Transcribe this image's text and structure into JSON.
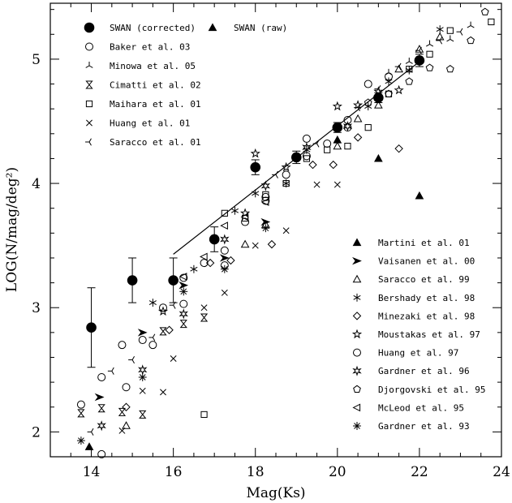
{
  "chart_data": {
    "type": "scatter",
    "xlabel": "Mag(Ks)",
    "ylabel": "LOG(N/mag/deg²)",
    "xlim": [
      13,
      24
    ],
    "ylim": [
      1.8,
      5.45
    ],
    "xticks": [
      14,
      16,
      18,
      20,
      22,
      24
    ],
    "yticks": [
      2,
      3,
      4,
      5
    ],
    "grid": false,
    "fit_line": {
      "x": [
        16,
        22
      ],
      "y": [
        3.43,
        4.98
      ]
    },
    "series": [
      {
        "name": "SWAN (corrected)",
        "marker": "filled-circle",
        "legend_group": "top-left",
        "x": [
          14,
          15,
          16,
          17,
          18,
          19,
          20,
          21,
          22
        ],
        "y": [
          2.84,
          3.22,
          3.22,
          3.55,
          4.13,
          4.21,
          4.45,
          4.69,
          4.99
        ],
        "err": [
          0.32,
          0.18,
          0.18,
          0.1,
          0.06,
          0.05,
          0.04,
          0.04,
          0.05
        ]
      },
      {
        "name": "SWAN (raw)",
        "marker": "filled-triangle",
        "legend_group": "top-right",
        "x": [
          20,
          21,
          22
        ],
        "y": [
          4.35,
          4.2,
          3.9
        ]
      },
      {
        "name": "Baker et al. 03",
        "marker": "open-circle",
        "legend_group": "top-left",
        "x": [
          13.75,
          14.25,
          14.75,
          15.25,
          15.75,
          16.25,
          16.75,
          17.25,
          17.75,
          18.25,
          18.75,
          19.25,
          19.75,
          20.25,
          20.75,
          21.25
        ],
        "y": [
          2.22,
          2.44,
          2.7,
          2.74,
          3.0,
          3.24,
          3.36,
          3.46,
          3.69,
          3.89,
          4.07,
          4.22,
          4.32,
          4.45,
          4.8,
          4.86
        ]
      },
      {
        "name": "Minowa et al. 05",
        "marker": "tri-up",
        "legend_group": "top-left",
        "x": [
          21.25,
          21.75,
          22.25,
          22.75,
          23.25
        ],
        "y": [
          4.89,
          4.98,
          5.12,
          5.16,
          5.27
        ]
      },
      {
        "name": "Cimatti et al. 02",
        "marker": "hourglass",
        "legend_group": "top-left",
        "x": [
          13.75,
          14.25,
          14.75,
          15.25,
          15.75,
          16.25,
          16.75
        ],
        "y": [
          2.15,
          2.19,
          2.16,
          2.14,
          2.81,
          2.87,
          2.92
        ]
      },
      {
        "name": "Maihara et al. 01",
        "marker": "open-square",
        "legend_group": "top-left",
        "x": [
          16.75,
          17.25,
          17.75,
          18.25,
          18.75,
          19.25,
          19.75,
          20.25,
          20.75,
          21.25,
          21.75,
          22.25,
          22.75,
          23.75
        ],
        "y": [
          2.14,
          3.76,
          3.72,
          3.91,
          4.0,
          4.2,
          4.27,
          4.3,
          4.45,
          4.72,
          4.92,
          5.04,
          5.23,
          5.3
        ]
      },
      {
        "name": "Huang et al. 01",
        "marker": "x-cross",
        "legend_group": "top-left",
        "x": [
          14.75,
          15.25,
          15.75,
          16.0,
          16.75,
          17.25,
          18.0,
          18.75,
          19.5,
          20.0
        ],
        "y": [
          2.01,
          2.33,
          2.32,
          2.59,
          3.0,
          3.12,
          3.5,
          3.62,
          3.99,
          3.99
        ]
      },
      {
        "name": "Saracco et al. 01",
        "marker": "tri-left",
        "legend_group": "top-left",
        "x": [
          14.0,
          14.5,
          15.0,
          15.5,
          16.0,
          18.5,
          19.0,
          19.5,
          20.0,
          20.5,
          21.0,
          21.5,
          22.0,
          22.5,
          23.0
        ],
        "y": [
          2.0,
          2.49,
          2.58,
          2.76,
          3.02,
          4.07,
          4.2,
          4.32,
          4.46,
          4.61,
          4.76,
          4.94,
          5.07,
          5.15,
          5.22
        ]
      },
      {
        "name": "Martini et al. 01",
        "marker": "filled-triangle",
        "legend_group": "bottom-right",
        "x": [
          13.95
        ],
        "y": [
          1.88
        ]
      },
      {
        "name": "Vaisanen et al. 00",
        "marker": "filled-arrow",
        "legend_group": "bottom-right",
        "x": [
          14.2,
          15.25,
          16.25,
          17.25,
          18.25
        ],
        "y": [
          2.28,
          2.8,
          3.18,
          3.4,
          3.69
        ]
      },
      {
        "name": "Saracco et al. 99",
        "marker": "open-triangle",
        "legend_group": "bottom-right",
        "x": [
          14.85,
          17.75,
          18.25,
          20.0,
          20.5,
          21.0,
          21.5,
          22.0,
          22.5
        ],
        "y": [
          2.05,
          3.51,
          3.67,
          4.3,
          4.52,
          4.63,
          4.92,
          5.08,
          5.18
        ]
      },
      {
        "name": "Bershady et al. 98",
        "marker": "asterisk",
        "legend_group": "bottom-right",
        "x": [
          15.5,
          16.5,
          17.0,
          17.5,
          18.0,
          18.75,
          19.25,
          20.0,
          20.75,
          21.25,
          21.75,
          22.5
        ],
        "y": [
          3.04,
          3.31,
          3.56,
          3.78,
          3.92,
          4.0,
          4.27,
          4.45,
          4.62,
          4.82,
          4.91,
          5.24
        ]
      },
      {
        "name": "Minezaki et al. 98",
        "marker": "open-diamond",
        "legend_group": "bottom-right",
        "x": [
          14.85,
          15.9,
          16.9,
          17.4,
          18.4,
          19.4,
          19.9,
          20.5,
          21.5
        ],
        "y": [
          2.2,
          2.82,
          3.36,
          3.38,
          3.51,
          4.15,
          4.15,
          4.37,
          4.28
        ]
      },
      {
        "name": "Moustakas et al. 97",
        "marker": "open-star",
        "legend_group": "bottom-right",
        "x": [
          15.75,
          17.75,
          18.0,
          18.75,
          20.0,
          20.5,
          21.0,
          21.5
        ],
        "y": [
          2.97,
          3.76,
          4.24,
          4.13,
          4.62,
          4.63,
          4.74,
          4.75
        ]
      },
      {
        "name": "Huang et al. 97",
        "marker": "open-circle",
        "legend_group": "bottom-right",
        "x": [
          14.25,
          14.85,
          15.5,
          16.25,
          17.25,
          18.25,
          19.25,
          20.25
        ],
        "y": [
          1.82,
          2.36,
          2.7,
          3.03,
          3.34,
          3.86,
          4.36,
          4.51
        ]
      },
      {
        "name": "Gardner et al. 96",
        "marker": "open-sixstar",
        "legend_group": "bottom-right",
        "x": [
          14.25,
          15.25,
          16.25,
          17.25,
          18.25,
          19.25,
          20.25
        ],
        "y": [
          2.05,
          2.5,
          2.95,
          3.55,
          3.98,
          4.29,
          4.46
        ]
      },
      {
        "name": "Djorgovski et al. 95",
        "marker": "open-pentagon",
        "legend_group": "bottom-right",
        "x": [
          20.75,
          21.25,
          21.75,
          22.25,
          22.75,
          23.25,
          23.6
        ],
        "y": [
          4.65,
          4.72,
          4.82,
          4.93,
          4.92,
          5.15,
          5.38
        ]
      },
      {
        "name": "McLeod et al. 95",
        "marker": "tri-wedge-left",
        "legend_group": "bottom-right",
        "x": [
          16.25,
          16.75,
          17.25,
          17.75,
          18.25
        ],
        "y": [
          3.25,
          3.41,
          3.66,
          3.73,
          3.85
        ]
      },
      {
        "name": "Gardner et al. 93",
        "marker": "asterisk-star",
        "legend_group": "bottom-right",
        "x": [
          13.75,
          15.25,
          16.25,
          17.25,
          18.25
        ],
        "y": [
          1.93,
          2.44,
          3.13,
          3.31,
          3.64
        ]
      }
    ]
  }
}
